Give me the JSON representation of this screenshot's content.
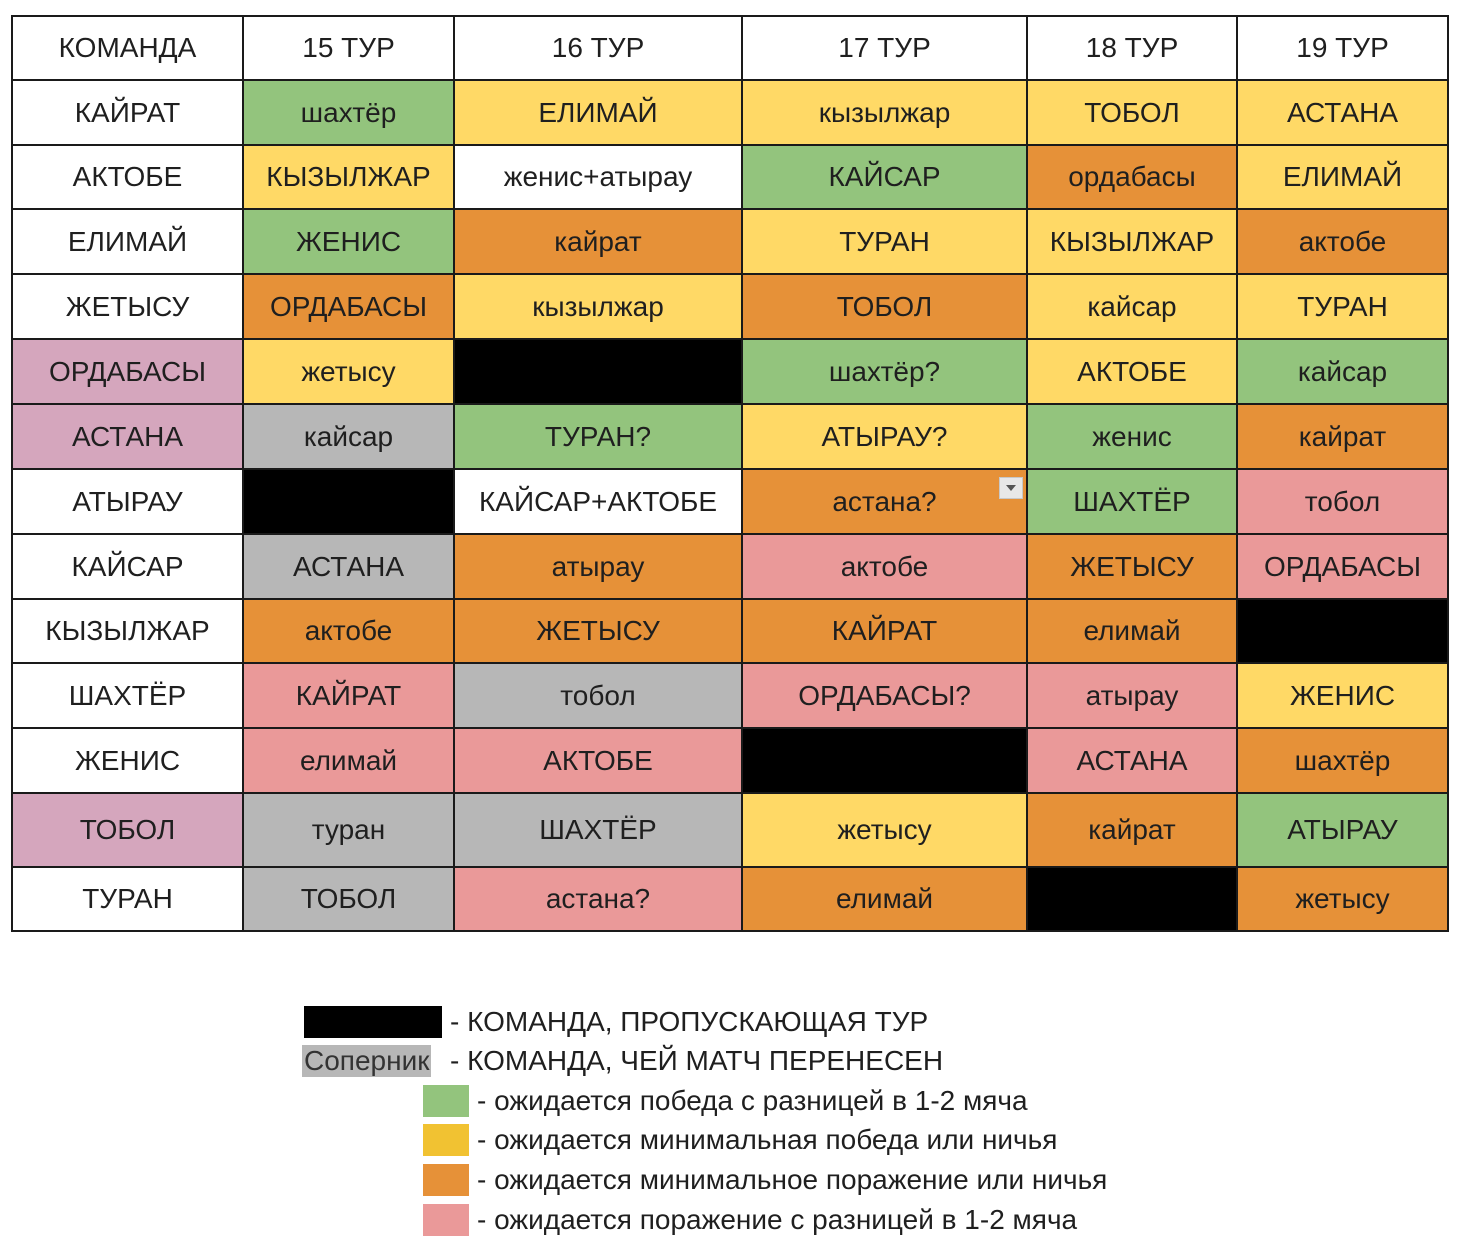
{
  "table": {
    "headers": [
      "КОМАНДА",
      "15 ТУР",
      "16 ТУР",
      "17 ТУР",
      "18 ТУР",
      "19 ТУР"
    ],
    "rows": [
      {
        "team": "КАЙРАТ",
        "cells": [
          {
            "text": "шахтёр",
            "color": "#93c47d"
          },
          {
            "text": "ЕЛИМАЙ",
            "color": "#ffd966"
          },
          {
            "text": "кызылжар",
            "color": "#ffd966"
          },
          {
            "text": "ТОБОЛ",
            "color": "#ffd966"
          },
          {
            "text": "АСТАНА",
            "color": "#ffd966"
          }
        ]
      },
      {
        "team": "АКТОБЕ",
        "cells": [
          {
            "text": "КЫЗЫЛЖАР",
            "color": "#ffd966"
          },
          {
            "text": "женис+атырау",
            "color": "#ffffff"
          },
          {
            "text": "КАЙСАР",
            "color": "#93c47d"
          },
          {
            "text": "ордабасы",
            "color": "#e69138"
          },
          {
            "text": "ЕЛИМАЙ",
            "color": "#ffd966"
          }
        ]
      },
      {
        "team": "ЕЛИМАЙ",
        "cells": [
          {
            "text": "ЖЕНИС",
            "color": "#93c47d"
          },
          {
            "text": "кайрат",
            "color": "#e69138"
          },
          {
            "text": "ТУРАН",
            "color": "#ffd966"
          },
          {
            "text": "КЫЗЫЛЖАР",
            "color": "#ffd966"
          },
          {
            "text": "актобе",
            "color": "#e69138"
          }
        ]
      },
      {
        "team": "ЖЕТЫСУ",
        "cells": [
          {
            "text": "ОРДАБАСЫ",
            "color": "#e69138"
          },
          {
            "text": "кызылжар",
            "color": "#ffd966"
          },
          {
            "text": "ТОБОЛ",
            "color": "#e69138"
          },
          {
            "text": "кайсар",
            "color": "#ffd966"
          },
          {
            "text": "ТУРАН",
            "color": "#ffd966"
          }
        ]
      },
      {
        "team": "ОРДАБАСЫ",
        "team_color": "#d5a6bd",
        "cells": [
          {
            "text": "жетысу",
            "color": "#ffd966"
          },
          {
            "text": "",
            "color": "#000000"
          },
          {
            "text": "шахтёр?",
            "color": "#93c47d"
          },
          {
            "text": "АКТОБЕ",
            "color": "#ffd966"
          },
          {
            "text": "кайсар",
            "color": "#93c47d"
          }
        ]
      },
      {
        "team": "АСТАНА",
        "team_color": "#d5a6bd",
        "cells": [
          {
            "text": "кайсар",
            "color": "#b7b7b7"
          },
          {
            "text": "ТУРАН?",
            "color": "#93c47d"
          },
          {
            "text": "АТЫРАУ?",
            "color": "#ffd966"
          },
          {
            "text": "женис",
            "color": "#93c47d"
          },
          {
            "text": "кайрат",
            "color": "#e69138"
          }
        ]
      },
      {
        "team": "АТЫРАУ",
        "cells": [
          {
            "text": "",
            "color": "#000000"
          },
          {
            "text": "КАЙСАР+АКТОБЕ",
            "color": "#ffffff"
          },
          {
            "text": "астана?",
            "color": "#e69138",
            "dropdown": true
          },
          {
            "text": "ШАХТЁР",
            "color": "#93c47d"
          },
          {
            "text": "тобол",
            "color": "#ea9999"
          }
        ]
      },
      {
        "team": "КАЙСАР",
        "cells": [
          {
            "text": "АСТАНА",
            "color": "#b7b7b7"
          },
          {
            "text": "атырау",
            "color": "#e69138"
          },
          {
            "text": "актобе",
            "color": "#ea9999"
          },
          {
            "text": "ЖЕТЫСУ",
            "color": "#e69138"
          },
          {
            "text": "ОРДАБАСЫ",
            "color": "#ea9999"
          }
        ]
      },
      {
        "team": "КЫЗЫЛЖАР",
        "cells": [
          {
            "text": "актобе",
            "color": "#e69138"
          },
          {
            "text": "ЖЕТЫСУ",
            "color": "#e69138"
          },
          {
            "text": "КАЙРАТ",
            "color": "#e69138"
          },
          {
            "text": "елимай",
            "color": "#e69138"
          },
          {
            "text": "",
            "color": "#000000"
          }
        ]
      },
      {
        "team": "ШАХТЁР",
        "cells": [
          {
            "text": "КАЙРАТ",
            "color": "#ea9999"
          },
          {
            "text": "тобол",
            "color": "#b7b7b7"
          },
          {
            "text": "ОРДАБАСЫ?",
            "color": "#ea9999"
          },
          {
            "text": "атырау",
            "color": "#ea9999"
          },
          {
            "text": "ЖЕНИС",
            "color": "#ffd966"
          }
        ]
      },
      {
        "team": "ЖЕНИС",
        "cells": [
          {
            "text": "елимай",
            "color": "#ea9999"
          },
          {
            "text": "АКТОБЕ",
            "color": "#ea9999"
          },
          {
            "text": "",
            "color": "#000000"
          },
          {
            "text": "АСТАНА",
            "color": "#ea9999"
          },
          {
            "text": "шахтёр",
            "color": "#e69138"
          }
        ]
      },
      {
        "team": "ТОБОЛ",
        "team_color": "#d5a6bd",
        "cells": [
          {
            "text": "туран",
            "color": "#b7b7b7"
          },
          {
            "text": "ШАХТЁР",
            "color": "#b7b7b7"
          },
          {
            "text": "жетысу",
            "color": "#ffd966"
          },
          {
            "text": "кайрат",
            "color": "#e69138"
          },
          {
            "text": "АТЫРАУ",
            "color": "#93c47d"
          }
        ]
      },
      {
        "team": "ТУРАН",
        "cells": [
          {
            "text": "ТОБОЛ",
            "color": "#b7b7b7"
          },
          {
            "text": "астана?",
            "color": "#ea9999"
          },
          {
            "text": "елимай",
            "color": "#e69138"
          },
          {
            "text": "",
            "color": "#000000"
          },
          {
            "text": "жетысу",
            "color": "#e69138"
          }
        ]
      }
    ]
  },
  "legend": {
    "bye": {
      "text": "- КОМАНДА, ПРОПУСКАЮЩАЯ ТУР",
      "color": "#000000"
    },
    "postponed": {
      "swatch_text": "Соперник",
      "text": "-  КОМАНДА, ЧЕЙ МАТЧ ПЕРЕНЕСЕН",
      "color": "#b7b7b7"
    },
    "win_big": {
      "text": "- ожидается победа с разницей в 1-2 мяча",
      "color": "#93c47d"
    },
    "win_min": {
      "text": "- ожидается минимальная победа или ничья",
      "color": "#f1c232"
    },
    "loss_min": {
      "text": "- ожидается минимальное поражение или ничья",
      "color": "#e69138"
    },
    "loss_big": {
      "text": "- ожидается поражение с разницей в 1-2 мяча",
      "color": "#ea9999"
    }
  }
}
